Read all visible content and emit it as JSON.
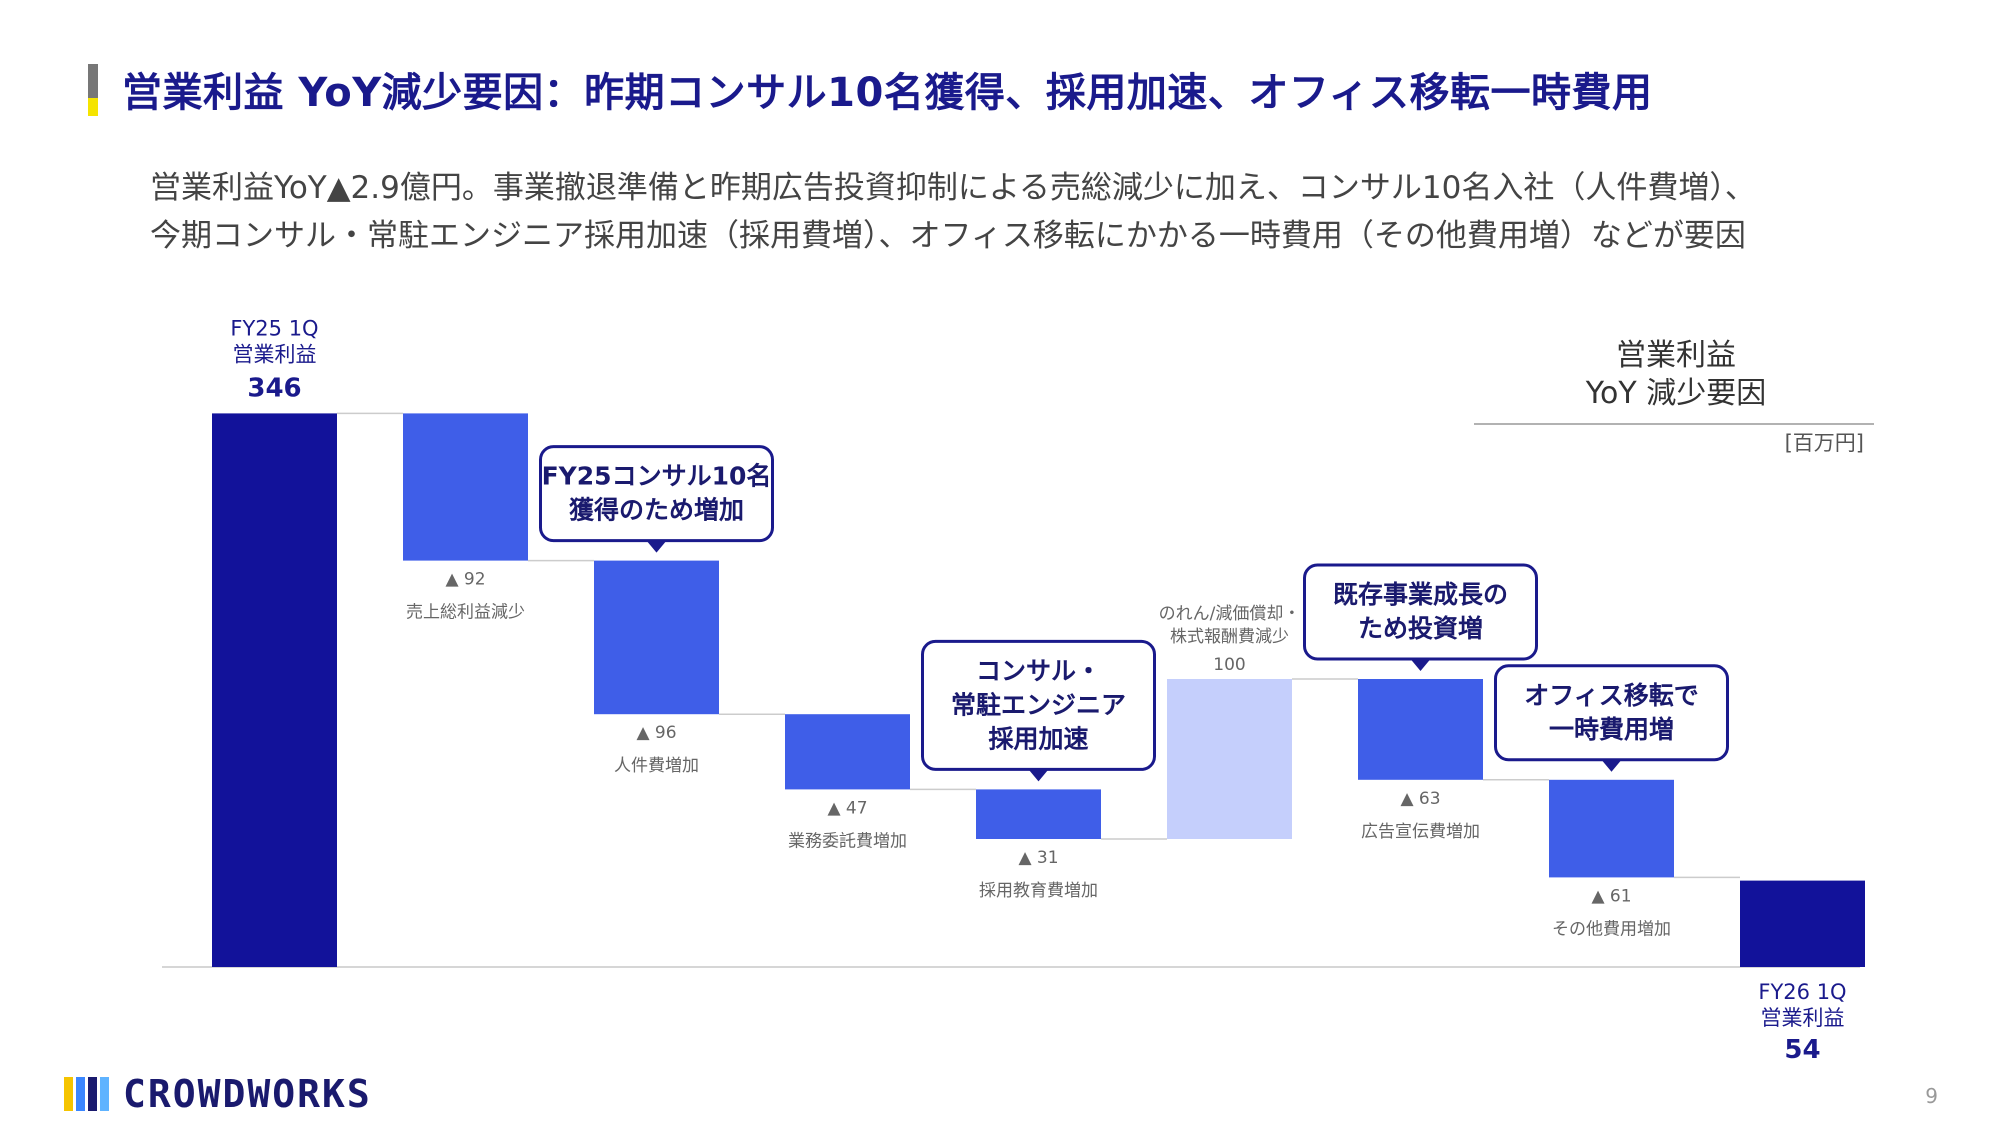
{
  "header": {
    "title": "営業利益 YoY減少要因：昨期コンサル10名獲得、採用加速、オフィス移転一時費用",
    "subtitle_line1": "営業利益YoY▲2.9億円。事業撤退準備と昨期広告投資抑制による売総減少に加え、コンサル10名入社（人件費増）、",
    "subtitle_line2": "今期コンサル・常駐エンジニア採用加速（採用費増）、オフィス移転にかかる一時費用（その他費用増）などが要因"
  },
  "colors": {
    "title": "#1a1a8c",
    "total_bar": "#12129a",
    "decrease_bar": "#3f5ee8",
    "increase_bar": "#c5cffc",
    "callout_border": "#1a1a8c",
    "title_accent_gray": "#777777",
    "title_accent_yellow": "#f5e400"
  },
  "chart_data": {
    "type": "waterfall",
    "unit": "[百万円]",
    "legend_title_line1": "営業利益",
    "legend_title_line2": "YoY 減少要因",
    "steps": [
      {
        "kind": "total",
        "label_line1": "FY25 1Q",
        "label_line2": "営業利益",
        "value": 346,
        "value_label": "346"
      },
      {
        "kind": "decrease",
        "label_line1": "売上総利益減少",
        "label_line2": "",
        "value": -92,
        "value_label": "▲ 92"
      },
      {
        "kind": "decrease",
        "label_line1": "人件費増加",
        "label_line2": "",
        "value": -96,
        "value_label": "▲ 96"
      },
      {
        "kind": "decrease",
        "label_line1": "業務委託費増加",
        "label_line2": "",
        "value": -47,
        "value_label": "▲ 47"
      },
      {
        "kind": "decrease",
        "label_line1": "採用教育費増加",
        "label_line2": "",
        "value": -31,
        "value_label": "▲ 31"
      },
      {
        "kind": "increase",
        "label_line1": "のれん/減価償却・",
        "label_line2": "株式報酬費減少",
        "value": 100,
        "value_label": "100"
      },
      {
        "kind": "decrease",
        "label_line1": "広告宣伝費増加",
        "label_line2": "",
        "value": -63,
        "value_label": "▲ 63"
      },
      {
        "kind": "decrease",
        "label_line1": "その他費用増加",
        "label_line2": "",
        "value": -61,
        "value_label": "▲ 61"
      },
      {
        "kind": "total",
        "label_line1": "FY26 1Q",
        "label_line2": "営業利益",
        "value": 54,
        "value_label": "54"
      }
    ],
    "callouts": [
      {
        "step": 2,
        "lines": [
          "FY25コンサル10名",
          "獲得のため増加"
        ]
      },
      {
        "step": 4,
        "lines": [
          "コンサル・",
          "常駐エンジニア",
          "採用加速"
        ]
      },
      {
        "step": 6,
        "lines": [
          "既存事業成長の",
          "ため投資増"
        ]
      },
      {
        "step": 7,
        "lines": [
          "オフィス移転で",
          "一時費用増"
        ]
      }
    ]
  },
  "footer": {
    "logo_text": "CROWDWORKS",
    "page_number": "9"
  }
}
